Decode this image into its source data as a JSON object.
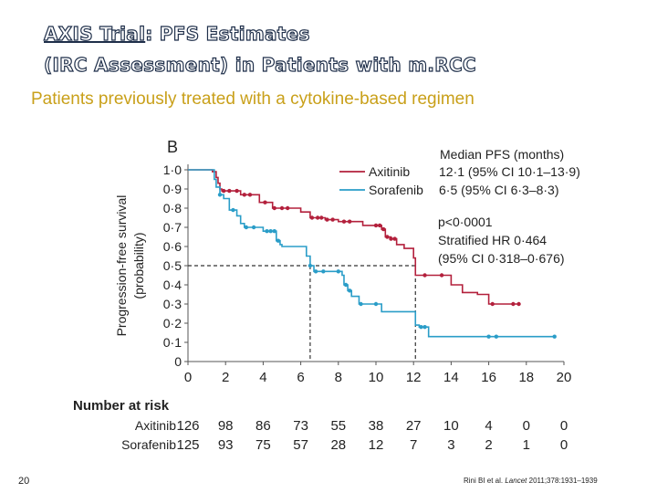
{
  "slide": {
    "title_part1": "AXIS Trial",
    "title_part2": ":  PFS Estimates",
    "title_line2": "(IRC Assessment) in Patients with m.RCC",
    "subtitle": "Patients previously treated with a cytokine-based regimen",
    "slide_number": "20",
    "citation_authors": "Rini BI et al. ",
    "citation_journal": "Lancet",
    "citation_rest": " 2011;378:1931–1939"
  },
  "colors": {
    "axitinib": "#b3203c",
    "sorafenib": "#2a9dc8",
    "text": "#222222"
  },
  "chart_data": {
    "type": "line",
    "panel_label": "B",
    "ylabel": "Progression-free survival (probability)",
    "xlim": [
      0,
      20
    ],
    "ylim": [
      0,
      1
    ],
    "x_ticks": [
      "0",
      "2",
      "4",
      "6",
      "8",
      "10",
      "12",
      "14",
      "16",
      "18",
      "20"
    ],
    "y_ticks": [
      "0",
      "0·1",
      "0·2",
      "0·3",
      "0·4",
      "0·5",
      "0·6",
      "0·7",
      "0·8",
      "0·9",
      "1·0"
    ],
    "legend": {
      "title": "Median PFS (months)",
      "entries": [
        {
          "name": "Axitinib",
          "value": "12·1 (95% CI 10·1–13·9)"
        },
        {
          "name": "Sorafenib",
          "value": "6·5 (95% CI 6·3–8·3)"
        }
      ]
    },
    "annotations": [
      "p<0·0001",
      "Stratified HR 0·464",
      "(95% CI 0·318–0·676)"
    ],
    "median_line_y": 0.5,
    "median_markers_x": [
      6.5,
      12.1
    ],
    "series": [
      {
        "name": "Axitinib",
        "steps": [
          [
            0,
            1.0
          ],
          [
            1.3,
            0.99
          ],
          [
            1.5,
            0.96
          ],
          [
            1.6,
            0.93
          ],
          [
            1.7,
            0.9
          ],
          [
            1.8,
            0.89
          ],
          [
            2.8,
            0.87
          ],
          [
            3.8,
            0.83
          ],
          [
            4.5,
            0.8
          ],
          [
            6.0,
            0.78
          ],
          [
            6.5,
            0.75
          ],
          [
            7.3,
            0.74
          ],
          [
            8.0,
            0.73
          ],
          [
            9.3,
            0.71
          ],
          [
            10.3,
            0.69
          ],
          [
            10.5,
            0.65
          ],
          [
            10.8,
            0.64
          ],
          [
            11.1,
            0.61
          ],
          [
            11.5,
            0.59
          ],
          [
            12.0,
            0.54
          ],
          [
            12.1,
            0.45
          ],
          [
            14.0,
            0.4
          ],
          [
            14.6,
            0.36
          ],
          [
            15.4,
            0.35
          ],
          [
            15.8,
            0.35
          ],
          [
            16.0,
            0.3
          ],
          [
            17.0,
            0.3
          ],
          [
            17.6,
            0.3
          ]
        ],
        "censor_x": [
          1.9,
          2.2,
          2.6,
          3.0,
          3.3,
          4.1,
          4.6,
          5.0,
          5.3,
          6.6,
          6.9,
          7.1,
          7.4,
          7.7,
          8.3,
          8.6,
          10.0,
          10.2,
          10.4,
          10.6,
          10.8,
          11.0,
          12.6,
          13.5,
          16.2,
          17.3,
          17.6
        ]
      },
      {
        "name": "Sorafenib",
        "steps": [
          [
            0,
            1.0
          ],
          [
            1.4,
            0.95
          ],
          [
            1.5,
            0.91
          ],
          [
            1.7,
            0.87
          ],
          [
            1.9,
            0.85
          ],
          [
            2.2,
            0.79
          ],
          [
            2.6,
            0.76
          ],
          [
            2.8,
            0.72
          ],
          [
            3.0,
            0.7
          ],
          [
            4.0,
            0.68
          ],
          [
            4.7,
            0.63
          ],
          [
            4.9,
            0.61
          ],
          [
            5.0,
            0.6
          ],
          [
            6.3,
            0.55
          ],
          [
            6.5,
            0.5
          ],
          [
            6.7,
            0.47
          ],
          [
            8.2,
            0.45
          ],
          [
            8.3,
            0.4
          ],
          [
            8.5,
            0.37
          ],
          [
            8.7,
            0.34
          ],
          [
            9.1,
            0.3
          ],
          [
            10.3,
            0.26
          ],
          [
            12.1,
            0.19
          ],
          [
            12.3,
            0.18
          ],
          [
            12.8,
            0.13
          ],
          [
            16.3,
            0.13
          ],
          [
            19.5,
            0.13
          ]
        ],
        "censor_x": [
          1.7,
          2.4,
          3.1,
          3.5,
          4.2,
          4.4,
          4.6,
          4.8,
          6.5,
          6.8,
          7.2,
          8.0,
          8.4,
          8.6,
          9.2,
          10.0,
          12.4,
          12.6,
          16.0,
          16.4,
          19.5
        ]
      }
    ],
    "risk_table": {
      "title": "Number at risk",
      "times": [
        "0",
        "2",
        "4",
        "6",
        "8",
        "10",
        "12",
        "14",
        "16",
        "18",
        "20"
      ],
      "rows": [
        {
          "name": "Axitinib",
          "values": [
            "126",
            "98",
            "86",
            "73",
            "55",
            "38",
            "27",
            "10",
            "4",
            "0",
            "0"
          ]
        },
        {
          "name": "Sorafenib",
          "values": [
            "125",
            "93",
            "75",
            "57",
            "28",
            "12",
            "7",
            "3",
            "2",
            "1",
            "0"
          ]
        }
      ]
    }
  }
}
